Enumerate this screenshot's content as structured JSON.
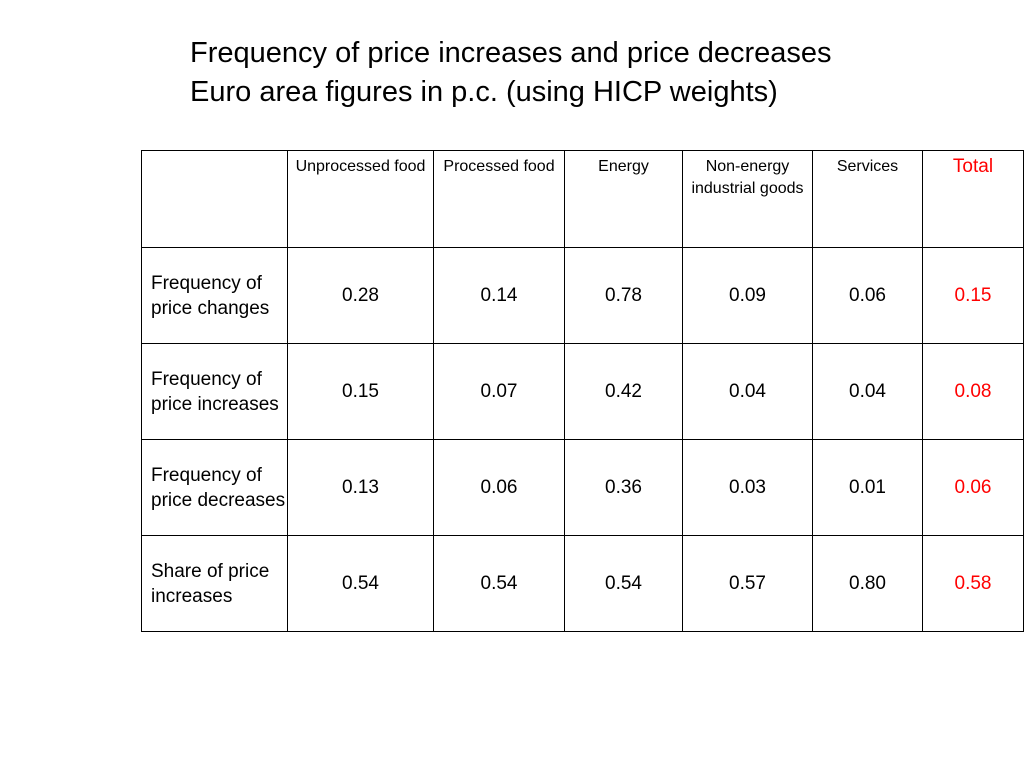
{
  "title": {
    "line1": "Frequency of price increases and price decreases",
    "line2": "Euro area figures in p.c. (using HICP weights)"
  },
  "table": {
    "columns": [
      "Unprocessed food",
      "Processed food",
      "Energy",
      "Non-energy industrial goods",
      "Services",
      "Total"
    ],
    "rows": [
      {
        "label": "Frequency of price changes",
        "values": [
          "0.28",
          "0.14",
          "0.78",
          "0.09",
          "0.06",
          "0.15"
        ]
      },
      {
        "label": "Frequency of price increases",
        "values": [
          "0.15",
          "0.07",
          "0.42",
          "0.04",
          "0.04",
          "0.08"
        ]
      },
      {
        "label": "Frequency of price decreases",
        "values": [
          "0.13",
          "0.06",
          "0.36",
          "0.03",
          "0.01",
          "0.06"
        ]
      },
      {
        "label": "Share of price increases",
        "values": [
          "0.54",
          "0.54",
          "0.54",
          "0.57",
          "0.80",
          "0.58"
        ]
      }
    ]
  },
  "colors": {
    "total_highlight": "#ff0000",
    "text": "#000000",
    "border": "#000000"
  }
}
